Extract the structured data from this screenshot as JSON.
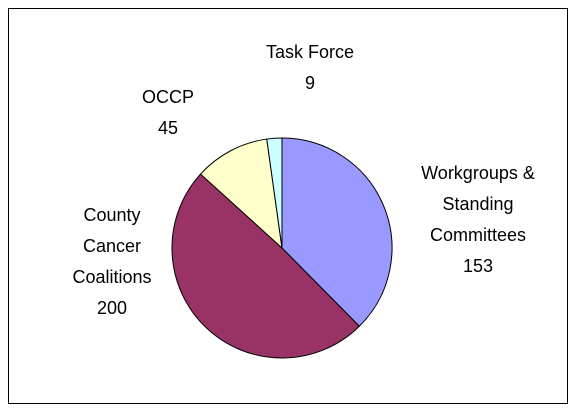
{
  "chart_data": {
    "type": "pie",
    "categories": [
      "Workgroups & Standing Committees",
      "County Cancer Coalitions",
      "OCCP",
      "Task Force"
    ],
    "values": [
      153,
      200,
      45,
      9
    ],
    "colors": [
      "#9999ff",
      "#993366",
      "#ffffcc",
      "#ccffff"
    ]
  }
}
